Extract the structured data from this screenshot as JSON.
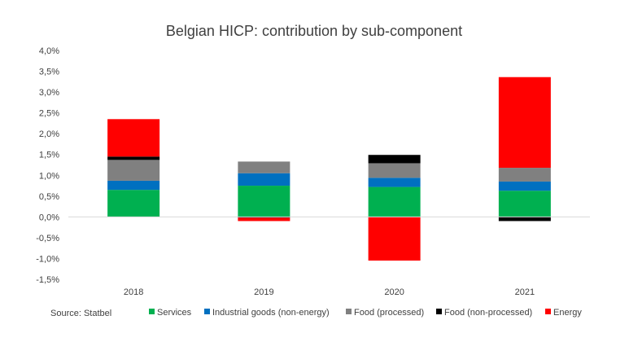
{
  "chart_data": {
    "type": "bar",
    "stacked": true,
    "title": "Belgian HICP: contribution by sub-component",
    "categories": [
      "2018",
      "2019",
      "2020",
      "2021"
    ],
    "ylim": [
      -1.5,
      4.0
    ],
    "y_ticks": [
      "4,0%",
      "3,5%",
      "3,0%",
      "2,5%",
      "2,0%",
      "1,5%",
      "1,0%",
      "0,5%",
      "0,0%",
      "-0,5%",
      "-1,0%",
      "-1,5%"
    ],
    "grid": false,
    "legend_position": "bottom",
    "series": [
      {
        "name": "Services",
        "color": "#00b050",
        "values": [
          0.65,
          0.75,
          0.72,
          0.63
        ]
      },
      {
        "name": "Industrial goods (non-energy)",
        "color": "#0070c0",
        "values": [
          0.22,
          0.3,
          0.22,
          0.22
        ]
      },
      {
        "name": "Food (processed)",
        "color": "#808080",
        "values": [
          0.5,
          0.28,
          0.35,
          0.33
        ]
      },
      {
        "name": "Food (non-processed)",
        "color": "#000000",
        "values": [
          0.08,
          -0.02,
          0.2,
          -0.1
        ]
      },
      {
        "name": "Energy",
        "color": "#ff0000",
        "values": [
          0.9,
          -0.08,
          -1.05,
          2.18
        ]
      }
    ],
    "source": "Source: Statbel"
  }
}
